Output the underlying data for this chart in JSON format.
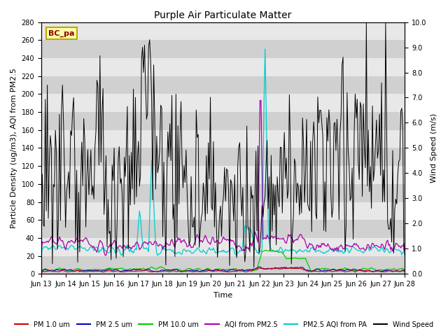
{
  "title": "Purple Air Particulate Matter",
  "xlabel": "Time",
  "ylabel_left": "Particle Density (ug/m3), AQI from PM2.5",
  "ylabel_right": "Wind Speed (m/s)",
  "ylim_left": [
    0,
    280
  ],
  "ylim_right": [
    0.0,
    10.0
  ],
  "yticks_left": [
    0,
    20,
    40,
    60,
    80,
    100,
    120,
    140,
    160,
    180,
    200,
    220,
    240,
    260,
    280
  ],
  "yticks_right": [
    0.0,
    1.0,
    2.0,
    3.0,
    4.0,
    5.0,
    6.0,
    7.0,
    8.0,
    9.0,
    10.0
  ],
  "xtick_labels": [
    "Jun 13",
    "Jun 14",
    "Jun 15",
    "Jun 16",
    "Jun 17",
    "Jun 18",
    "Jun 19",
    "Jun 20",
    "Jun 21",
    "Jun 22",
    "Jun 23",
    "Jun 24",
    "Jun 25",
    "Jun 26",
    "Jun 27",
    "Jun 28"
  ],
  "n_xtick_labels": 16,
  "station_label": "BC_pa",
  "colors": {
    "pm1": "#cc0000",
    "pm25": "#0000cc",
    "pm10": "#00cc00",
    "aqi_pm25": "#aa00aa",
    "pm25_aqi_pa": "#00cccc",
    "wind": "#000000",
    "bg_dark": "#d8d8d8",
    "bg_light": "#e8e8e8"
  },
  "legend": [
    {
      "label": "PM 1.0 um",
      "color": "#cc0000"
    },
    {
      "label": "PM 2.5 um",
      "color": "#0000cc"
    },
    {
      "label": "PM 10.0 um",
      "color": "#00cc00"
    },
    {
      "label": "AQI from PM2.5",
      "color": "#aa00aa"
    },
    {
      "label": "PM2.5 AQI from PA",
      "color": "#00cccc"
    },
    {
      "label": "Wind Speed",
      "color": "#000000"
    }
  ],
  "figsize": [
    6.4,
    4.8
  ],
  "dpi": 100
}
